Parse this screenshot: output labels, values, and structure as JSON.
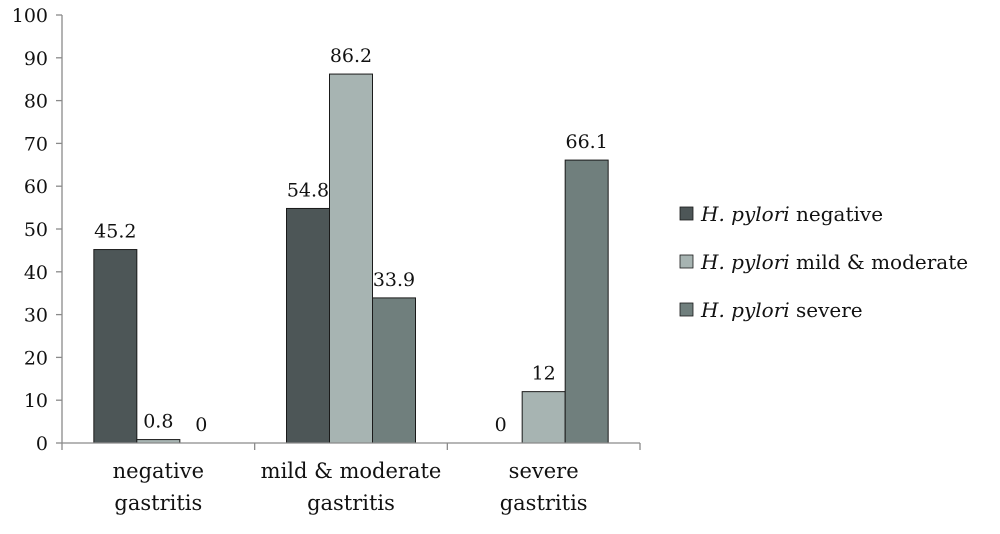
{
  "chart_data": {
    "type": "bar",
    "categories": [
      [
        "negative",
        "gastritis"
      ],
      [
        "mild & moderate",
        "gastritis"
      ],
      [
        "severe",
        "gastritis"
      ]
    ],
    "series": [
      {
        "name": {
          "italic": "H. pylori",
          "rest": " negative"
        },
        "values": [
          45.2,
          54.8,
          0
        ],
        "labels": [
          "45.2",
          "54.8",
          "0"
        ],
        "color": "#4d5657"
      },
      {
        "name": {
          "italic": "H. pylori",
          "rest": " mild & moderate"
        },
        "values": [
          0.8,
          86.2,
          12
        ],
        "labels": [
          "0.8",
          "86.2",
          "12"
        ],
        "color": "#a7b4b2"
      },
      {
        "name": {
          "italic": "H. pylori",
          "rest": " severe"
        },
        "values": [
          0,
          33.9,
          66.1
        ],
        "labels": [
          "0",
          "33.9",
          "66.1"
        ],
        "color": "#707f7d"
      }
    ],
    "ylim": [
      0,
      100
    ],
    "yticks": [
      "0",
      "10",
      "20",
      "30",
      "40",
      "50",
      "60",
      "70",
      "80",
      "90",
      "100"
    ],
    "grid": false,
    "legend_position": "right"
  }
}
